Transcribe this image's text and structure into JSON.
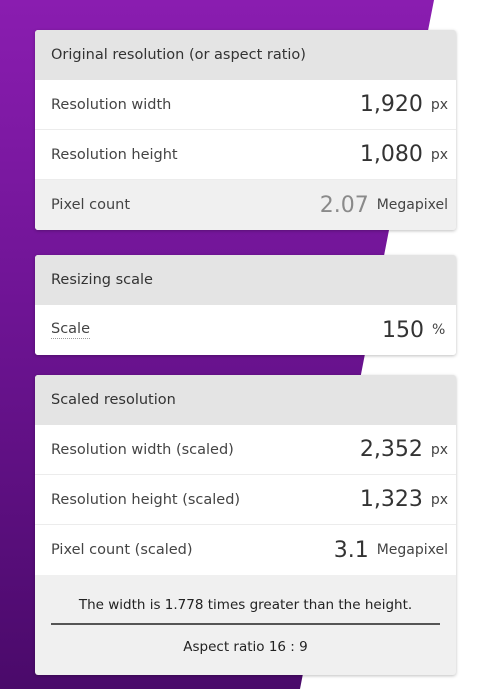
{
  "colors": {
    "bg_purple_dark": "#5a0d7c",
    "bg_purple_light": "#8a1db0",
    "card_bg": "#f0f0f0",
    "header_bg": "#e4e4e4"
  },
  "original": {
    "title": "Original resolution (or aspect ratio)",
    "width_label": "Resolution width",
    "width_value": "1,920",
    "width_unit": "px",
    "height_label": "Resolution height",
    "height_value": "1,080",
    "height_unit": "px",
    "pixel_label": "Pixel count",
    "pixel_value": "2.07",
    "pixel_unit": "Megapixel"
  },
  "scale": {
    "title": "Resizing scale",
    "label": "Scale",
    "value": "150",
    "unit": "%"
  },
  "scaled": {
    "title": "Scaled resolution",
    "width_label": "Resolution width (scaled)",
    "width_value": "2,352",
    "width_unit": "px",
    "height_label": "Resolution height (scaled)",
    "height_value": "1,323",
    "height_unit": "px",
    "pixel_label": "Pixel count (scaled)",
    "pixel_value": "3.1",
    "pixel_unit": "Megapixel",
    "note": "The width is 1.778 times greater than the height.",
    "aspect": "Aspect ratio 16 : 9"
  }
}
